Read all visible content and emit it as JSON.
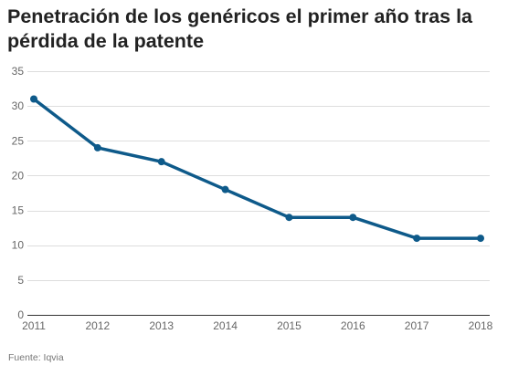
{
  "chart_data": {
    "type": "line",
    "title": "Penetración de los genéricos el primer año tras la pérdida de la patente",
    "xlabel": "",
    "ylabel": "",
    "x": [
      "2011",
      "2012",
      "2013",
      "2014",
      "2015",
      "2016",
      "2017",
      "2018"
    ],
    "series": [
      {
        "values": [
          31,
          24,
          22,
          18,
          14,
          14,
          11,
          11
        ]
      }
    ],
    "ylim": [
      0,
      35
    ],
    "yticks": [
      0,
      5,
      10,
      15,
      20,
      25,
      30,
      35
    ],
    "grid": true,
    "legend": "none",
    "colors": {
      "line": "#0e5a8a",
      "grid": "#dddddd",
      "axis": "#333333"
    }
  },
  "source": "Fuente: Iqvia"
}
